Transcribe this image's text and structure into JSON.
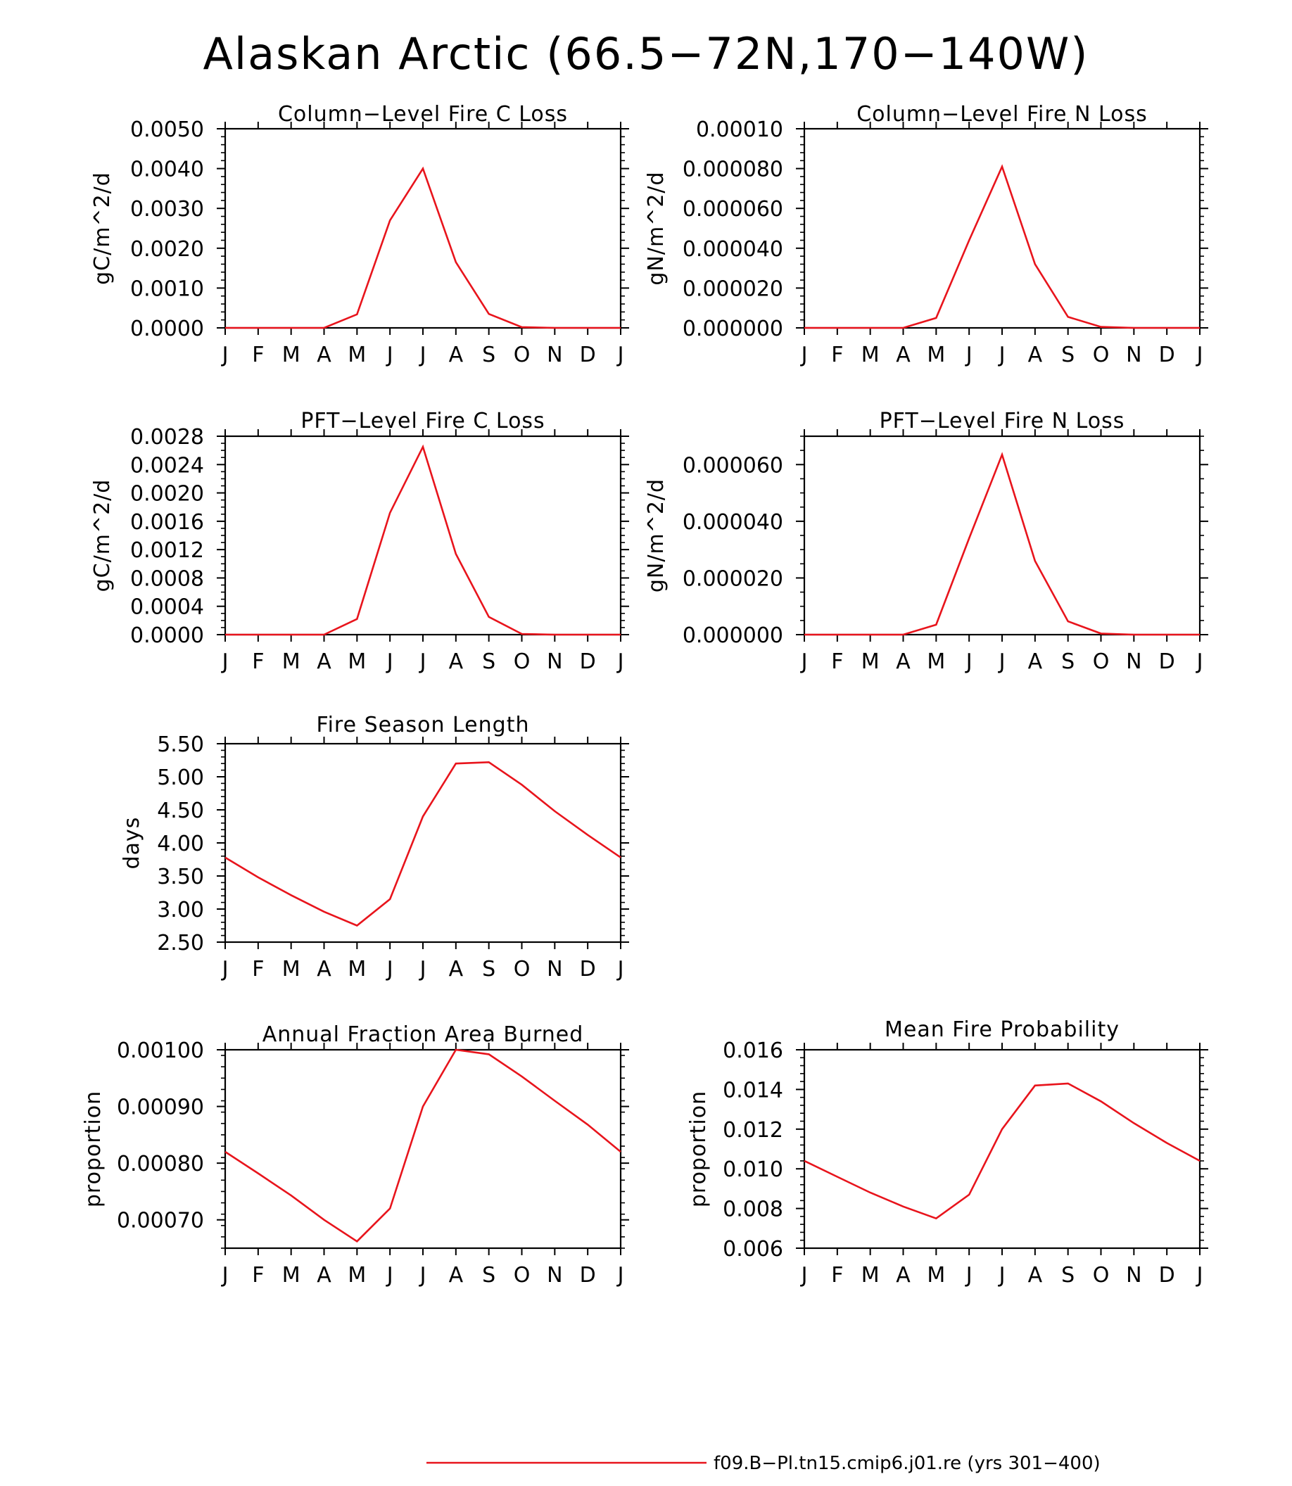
{
  "page": {
    "title": "Alaskan Arctic (66.5−72N,170−140W)",
    "background": "#ffffff",
    "line_color": "#e8141c",
    "axis_color": "#000000"
  },
  "legend": {
    "label": "f09.B−Pl.tn15.cmip6.j01.re (yrs 301−400)",
    "line_color": "#e8141c"
  },
  "chart_data": [
    {
      "type": "line",
      "title": "Column−Level Fire C Loss",
      "ylabel": "gC/m^2/d",
      "xlabel": "",
      "categories": [
        "J",
        "F",
        "M",
        "A",
        "M",
        "J",
        "J",
        "A",
        "S",
        "O",
        "N",
        "D",
        "J"
      ],
      "ylim": [
        0,
        0.005
      ],
      "yticks": [
        "0.0000",
        "0.0010",
        "0.0020",
        "0.0030",
        "0.0040",
        "0.0050"
      ],
      "yminor": 5,
      "grid": false,
      "series": [
        {
          "values": [
            0,
            0,
            0,
            0,
            0.00034,
            0.0027,
            0.004,
            0.00165,
            0.00035,
            2e-05,
            0,
            0,
            0
          ]
        }
      ]
    },
    {
      "type": "line",
      "title": "Column−Level Fire N Loss",
      "ylabel": "gN/m^2/d",
      "xlabel": "",
      "categories": [
        "J",
        "F",
        "M",
        "A",
        "M",
        "J",
        "J",
        "A",
        "S",
        "O",
        "N",
        "D",
        "J"
      ],
      "ylim": [
        0,
        0.0001
      ],
      "yticks": [
        "0.000000",
        "0.000020",
        "0.000040",
        "0.000060",
        "0.000080",
        "0.00010"
      ],
      "yminor": 5,
      "grid": false,
      "series": [
        {
          "values": [
            0,
            0,
            0,
            0,
            5e-06,
            4.4e-05,
            8.1e-05,
            3.2e-05,
            5.5e-06,
            5e-07,
            0,
            0,
            0
          ]
        }
      ]
    },
    {
      "type": "line",
      "title": "PFT−Level Fire C Loss",
      "ylabel": "gC/m^2/d",
      "xlabel": "",
      "categories": [
        "J",
        "F",
        "M",
        "A",
        "M",
        "J",
        "J",
        "A",
        "S",
        "O",
        "N",
        "D",
        "J"
      ],
      "ylim": [
        0,
        0.0028
      ],
      "yticks": [
        "0.0000",
        "0.0004",
        "0.0008",
        "0.0012",
        "0.0016",
        "0.0020",
        "0.0024",
        "0.0028"
      ],
      "yminor": 4,
      "grid": false,
      "series": [
        {
          "values": [
            0,
            0,
            0,
            0,
            0.00022,
            0.00172,
            0.00265,
            0.00114,
            0.00025,
            1e-05,
            0,
            0,
            0
          ]
        }
      ]
    },
    {
      "type": "line",
      "title": "PFT−Level Fire N Loss",
      "ylabel": "gN/m^2/d",
      "xlabel": "",
      "categories": [
        "J",
        "F",
        "M",
        "A",
        "M",
        "J",
        "J",
        "A",
        "S",
        "O",
        "N",
        "D",
        "J"
      ],
      "ylim": [
        0,
        7e-05
      ],
      "yticks": [
        "0.000000",
        "0.000020",
        "0.000040",
        "0.000060"
      ],
      "yminor": 4,
      "grid": false,
      "series": [
        {
          "values": [
            0,
            0,
            0,
            0,
            3.5e-06,
            3.4e-05,
            6.35e-05,
            2.6e-05,
            4.7e-06,
            4e-07,
            0,
            0,
            0
          ]
        }
      ]
    },
    {
      "type": "line",
      "title": "Fire Season Length",
      "ylabel": "days",
      "xlabel": "",
      "categories": [
        "J",
        "F",
        "M",
        "A",
        "M",
        "J",
        "J",
        "A",
        "S",
        "O",
        "N",
        "D",
        "J"
      ],
      "ylim": [
        2.5,
        5.5
      ],
      "yticks": [
        "2.50",
        "3.00",
        "3.50",
        "4.00",
        "4.50",
        "5.00",
        "5.50"
      ],
      "yminor": 5,
      "grid": false,
      "series": [
        {
          "values": [
            3.78,
            3.48,
            3.21,
            2.96,
            2.75,
            3.15,
            4.4,
            5.2,
            5.22,
            4.88,
            4.48,
            4.12,
            3.78
          ]
        }
      ]
    },
    {
      "type": "line",
      "title": "Annual Fraction Area Burned",
      "ylabel": "proportion",
      "xlabel": "",
      "categories": [
        "J",
        "F",
        "M",
        "A",
        "M",
        "J",
        "J",
        "A",
        "S",
        "O",
        "N",
        "D",
        "J"
      ],
      "ylim": [
        0.00065,
        0.001
      ],
      "yticks": [
        "0.00070",
        "0.00080",
        "0.00090",
        "0.00100"
      ],
      "yminor": 5,
      "grid": false,
      "series": [
        {
          "values": [
            0.00082,
            0.000782,
            0.000743,
            0.0007,
            0.000662,
            0.00072,
            0.0009,
            0.001,
            0.000992,
            0.000953,
            0.00091,
            0.000868,
            0.00082
          ]
        }
      ]
    },
    {
      "type": "line",
      "title": "Mean Fire Probability",
      "ylabel": "proportion",
      "xlabel": "",
      "categories": [
        "J",
        "F",
        "M",
        "A",
        "M",
        "J",
        "J",
        "A",
        "S",
        "O",
        "N",
        "D",
        "J"
      ],
      "ylim": [
        0.006,
        0.016
      ],
      "yticks": [
        "0.006",
        "0.008",
        "0.010",
        "0.012",
        "0.014",
        "0.016"
      ],
      "yminor": 5,
      "grid": false,
      "series": [
        {
          "values": [
            0.0104,
            0.0096,
            0.0088,
            0.0081,
            0.0075,
            0.0087,
            0.012,
            0.0142,
            0.0143,
            0.0134,
            0.0123,
            0.0113,
            0.0104
          ]
        }
      ]
    }
  ]
}
